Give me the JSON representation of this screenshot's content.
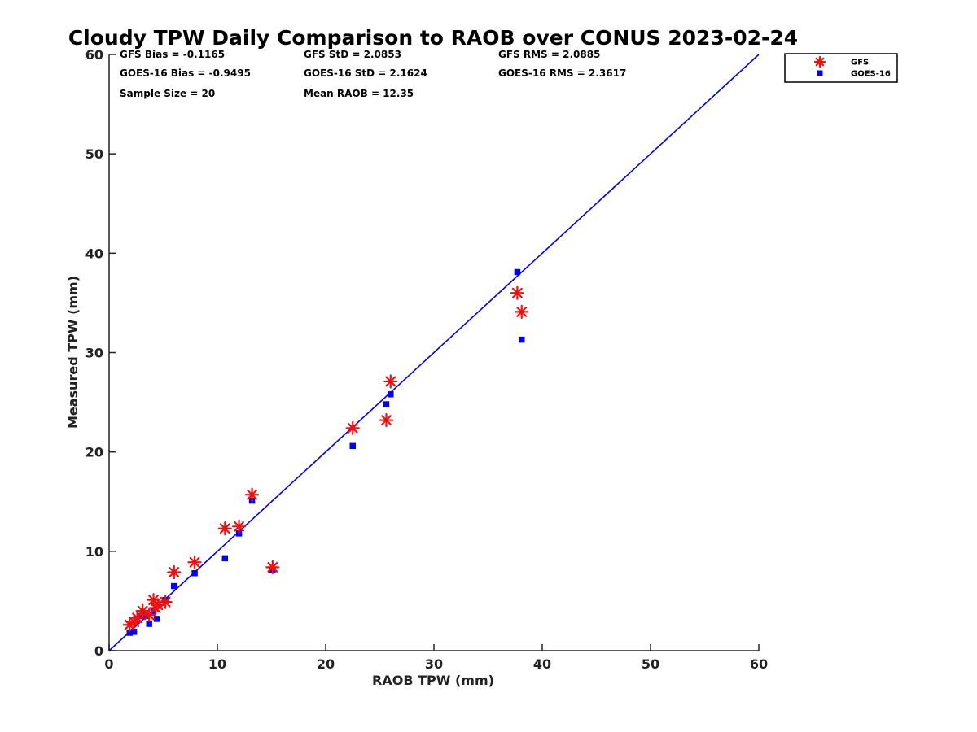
{
  "chart_data": {
    "type": "scatter",
    "title": "Cloudy TPW Daily Comparison to RAOB over CONUS 2023-02-24",
    "xlabel": "RAOB TPW (mm)",
    "ylabel": "Measured TPW (mm)",
    "xlim": [
      0,
      60
    ],
    "ylim": [
      0,
      60
    ],
    "xticks": [
      0,
      10,
      20,
      30,
      40,
      50,
      60
    ],
    "yticks": [
      0,
      10,
      20,
      30,
      40,
      50,
      60
    ],
    "grid": false,
    "legend_position": "top-right outside",
    "one_to_one_line": {
      "from": [
        0,
        0
      ],
      "to": [
        60,
        60
      ],
      "color": "#0000dd"
    },
    "stats": [
      [
        "GFS Bias = -0.1165",
        "GFS StD = 2.0853",
        "GFS RMS = 2.0885"
      ],
      [
        "GOES-16 Bias = -0.9495",
        "GOES-16 StD = 2.1624",
        "GOES-16 RMS = 2.3617"
      ],
      [
        "Sample Size = 20",
        "Mean RAOB = 12.35",
        ""
      ]
    ],
    "series": [
      {
        "name": "GFS",
        "marker": "asterisk",
        "color": "#ee1111",
        "points": [
          [
            1.9,
            2.6
          ],
          [
            2.3,
            2.9
          ],
          [
            2.6,
            3.3
          ],
          [
            3.1,
            4.0
          ],
          [
            3.7,
            3.6
          ],
          [
            4.1,
            5.1
          ],
          [
            4.3,
            4.3
          ],
          [
            4.5,
            4.6
          ],
          [
            5.2,
            4.9
          ],
          [
            6.0,
            7.9
          ],
          [
            7.9,
            8.9
          ],
          [
            10.7,
            12.3
          ],
          [
            12.0,
            12.5
          ],
          [
            13.2,
            15.7
          ],
          [
            15.1,
            8.4
          ],
          [
            22.5,
            22.4
          ],
          [
            25.6,
            23.2
          ],
          [
            26.0,
            27.1
          ],
          [
            37.7,
            36.0
          ],
          [
            38.1,
            34.1
          ]
        ]
      },
      {
        "name": "GOES-16",
        "marker": "square",
        "color": "#0000ee",
        "points": [
          [
            1.9,
            1.8
          ],
          [
            2.3,
            1.9
          ],
          [
            2.8,
            3.5
          ],
          [
            3.2,
            3.6
          ],
          [
            3.7,
            2.7
          ],
          [
            4.1,
            4.0
          ],
          [
            4.4,
            3.2
          ],
          [
            5.2,
            5.1
          ],
          [
            6.0,
            6.5
          ],
          [
            7.9,
            7.8
          ],
          [
            10.7,
            9.3
          ],
          [
            12.0,
            11.8
          ],
          [
            13.2,
            15.1
          ],
          [
            15.1,
            8.1
          ],
          [
            22.5,
            20.6
          ],
          [
            25.6,
            24.8
          ],
          [
            26.0,
            25.8
          ],
          [
            37.7,
            38.1
          ],
          [
            38.1,
            31.3
          ],
          [
            3.4,
            3.5
          ]
        ]
      }
    ]
  }
}
